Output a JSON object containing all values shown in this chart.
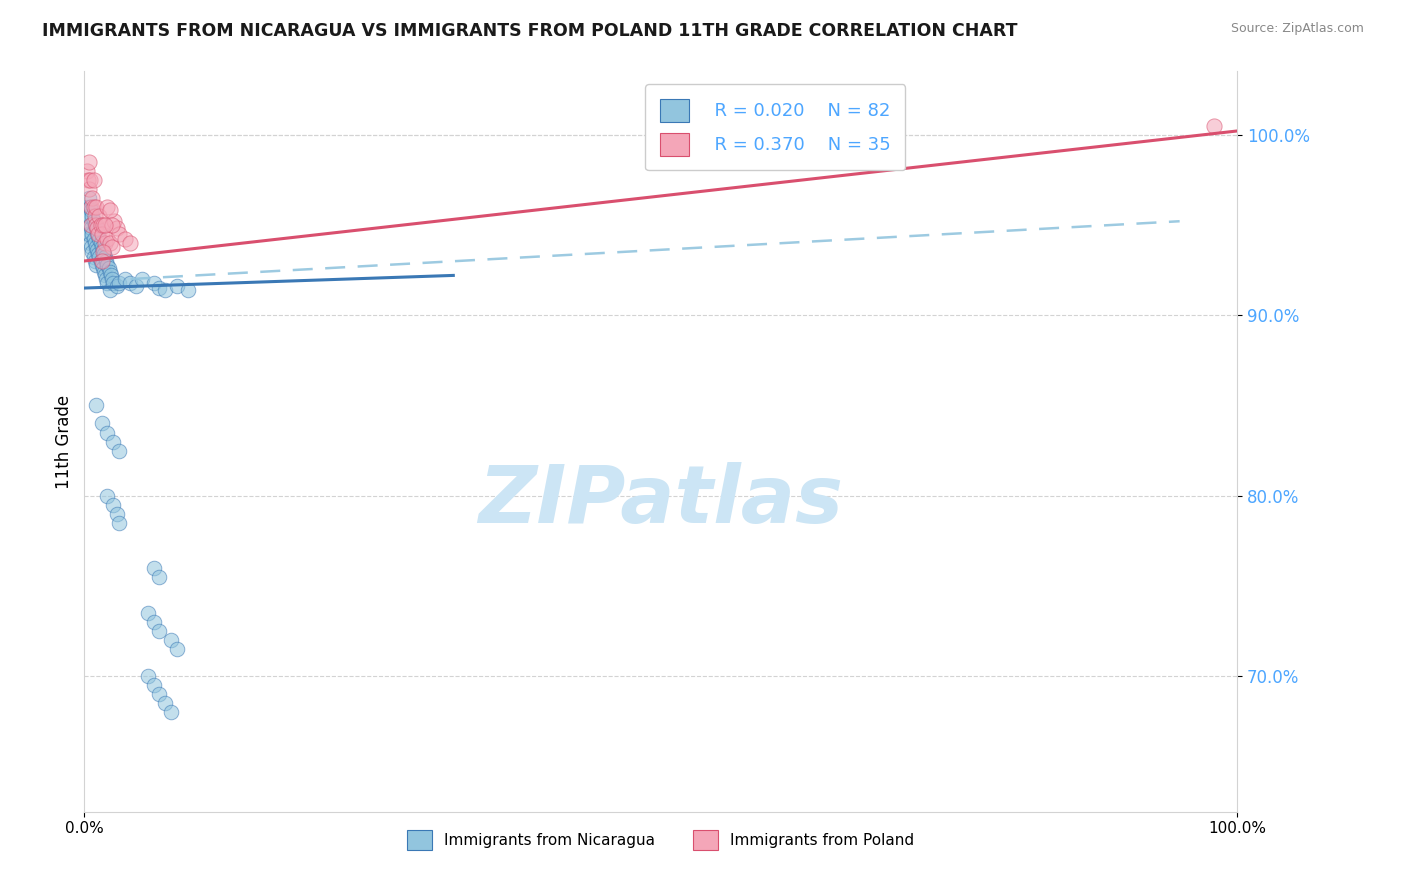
{
  "title": "IMMIGRANTS FROM NICARAGUA VS IMMIGRANTS FROM POLAND 11TH GRADE CORRELATION CHART",
  "source": "Source: ZipAtlas.com",
  "ylabel": "11th Grade",
  "legend_blue_r": "R = 0.020",
  "legend_blue_n": "N = 82",
  "legend_pink_r": "R = 0.370",
  "legend_pink_n": "N = 35",
  "legend1_label": "Immigrants from Nicaragua",
  "legend2_label": "Immigrants from Poland",
  "blue_color": "#92c5de",
  "pink_color": "#f4a6b8",
  "trendline_blue": "#3a78b5",
  "trendline_pink": "#d94f6e",
  "dash_color": "#92c5de",
  "watermark": "ZIPatlas",
  "watermark_color": "#cce5f5",
  "xlim": [
    0.0,
    1.0
  ],
  "ylim": [
    0.625,
    1.035
  ],
  "yticks": [
    0.7,
    0.8,
    0.9,
    1.0
  ],
  "xticks": [
    0.0,
    1.0
  ],
  "blue_trend_x": [
    0.0,
    0.32
  ],
  "blue_trend_y": [
    0.915,
    0.922
  ],
  "pink_trend_x": [
    0.0,
    1.0
  ],
  "pink_trend_y": [
    0.93,
    1.002
  ],
  "dash_trend_x": [
    0.04,
    0.95
  ],
  "dash_trend_y": [
    0.92,
    0.952
  ],
  "blue_x": [
    0.002,
    0.003,
    0.003,
    0.004,
    0.004,
    0.004,
    0.005,
    0.005,
    0.005,
    0.006,
    0.006,
    0.006,
    0.007,
    0.007,
    0.007,
    0.008,
    0.008,
    0.008,
    0.009,
    0.009,
    0.009,
    0.01,
    0.01,
    0.01,
    0.011,
    0.011,
    0.012,
    0.012,
    0.013,
    0.013,
    0.014,
    0.014,
    0.015,
    0.015,
    0.016,
    0.016,
    0.017,
    0.017,
    0.018,
    0.018,
    0.019,
    0.019,
    0.02,
    0.02,
    0.021,
    0.022,
    0.022,
    0.023,
    0.024,
    0.025,
    0.028,
    0.03,
    0.035,
    0.04,
    0.045,
    0.05,
    0.06,
    0.065,
    0.07,
    0.08,
    0.09,
    0.01,
    0.015,
    0.02,
    0.025,
    0.03,
    0.02,
    0.025,
    0.028,
    0.03,
    0.06,
    0.065,
    0.055,
    0.06,
    0.065,
    0.055,
    0.06,
    0.065,
    0.07,
    0.075,
    0.075,
    0.08
  ],
  "blue_y": [
    0.96,
    0.955,
    0.945,
    0.965,
    0.955,
    0.945,
    0.96,
    0.95,
    0.94,
    0.958,
    0.948,
    0.938,
    0.955,
    0.945,
    0.935,
    0.952,
    0.942,
    0.932,
    0.95,
    0.94,
    0.93,
    0.948,
    0.938,
    0.928,
    0.946,
    0.936,
    0.944,
    0.934,
    0.942,
    0.932,
    0.94,
    0.93,
    0.938,
    0.928,
    0.936,
    0.926,
    0.934,
    0.924,
    0.932,
    0.922,
    0.93,
    0.92,
    0.928,
    0.918,
    0.926,
    0.924,
    0.914,
    0.922,
    0.92,
    0.918,
    0.916,
    0.918,
    0.92,
    0.918,
    0.916,
    0.92,
    0.918,
    0.915,
    0.914,
    0.916,
    0.914,
    0.85,
    0.84,
    0.835,
    0.83,
    0.825,
    0.8,
    0.795,
    0.79,
    0.785,
    0.76,
    0.755,
    0.735,
    0.73,
    0.725,
    0.7,
    0.695,
    0.69,
    0.685,
    0.68,
    0.72,
    0.715
  ],
  "pink_x": [
    0.002,
    0.003,
    0.004,
    0.004,
    0.005,
    0.006,
    0.006,
    0.007,
    0.008,
    0.008,
    0.009,
    0.01,
    0.01,
    0.011,
    0.012,
    0.013,
    0.014,
    0.015,
    0.016,
    0.018,
    0.02,
    0.022,
    0.024,
    0.026,
    0.028,
    0.03,
    0.035,
    0.04,
    0.02,
    0.022,
    0.024,
    0.018,
    0.016,
    0.015,
    0.98
  ],
  "pink_y": [
    0.98,
    0.975,
    0.985,
    0.97,
    0.975,
    0.96,
    0.95,
    0.965,
    0.975,
    0.96,
    0.955,
    0.96,
    0.95,
    0.948,
    0.945,
    0.955,
    0.95,
    0.945,
    0.95,
    0.94,
    0.942,
    0.94,
    0.938,
    0.952,
    0.948,
    0.945,
    0.942,
    0.94,
    0.96,
    0.958,
    0.95,
    0.95,
    0.935,
    0.93,
    1.005
  ]
}
